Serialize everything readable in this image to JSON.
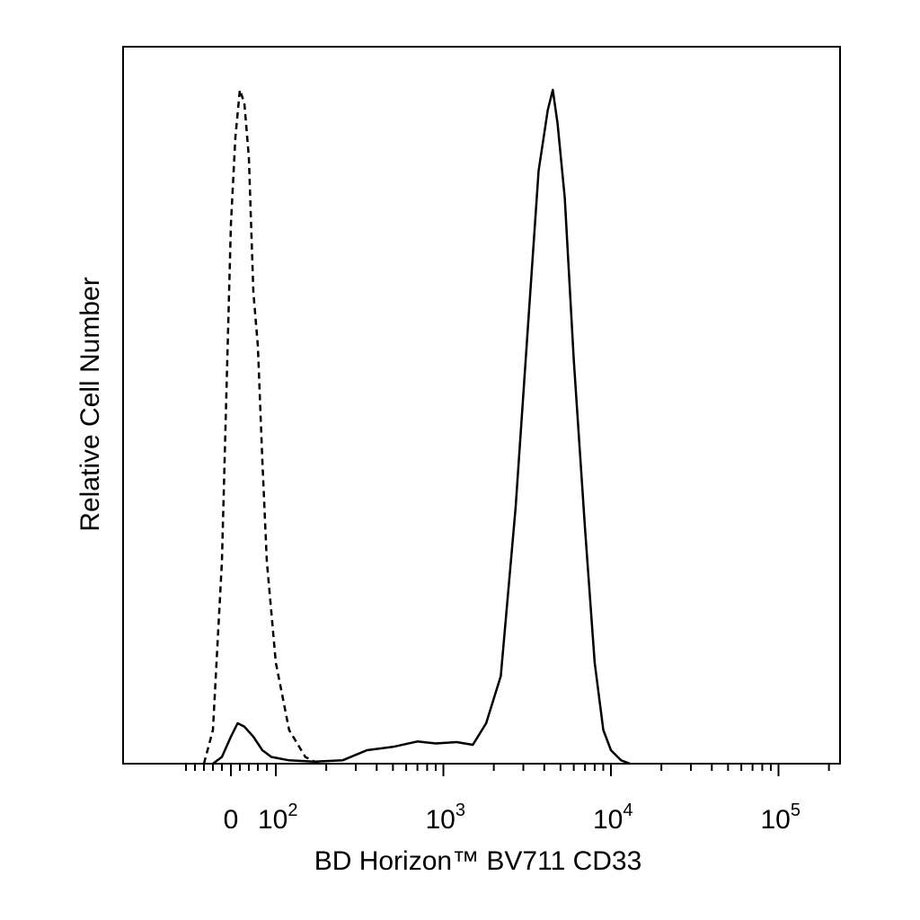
{
  "chart_data": {
    "type": "line",
    "title": "",
    "xlabel": "BD Horizon™ BV711 CD33",
    "ylabel": "Relative Cell Number",
    "x_scale": "biexponential (log above ~10^2)",
    "x_tick_labels": [
      {
        "base": "0",
        "exp": ""
      },
      {
        "base": "10",
        "exp": "2"
      },
      {
        "base": "10",
        "exp": "3"
      },
      {
        "base": "10",
        "exp": "4"
      },
      {
        "base": "10",
        "exp": "5"
      }
    ],
    "xlim": [
      -100,
      250000
    ],
    "ylim": [
      0,
      100
    ],
    "grid": false,
    "legend": "none",
    "series": [
      {
        "style": "dashed",
        "x": [
          -60,
          -40,
          -20,
          -10,
          0,
          10,
          20,
          30,
          40,
          50,
          60,
          70,
          80,
          100,
          120,
          150,
          180
        ],
        "y": [
          0,
          5,
          30,
          55,
          80,
          93,
          100,
          98,
          90,
          70,
          62,
          45,
          30,
          15,
          5,
          1,
          0
        ]
      },
      {
        "style": "solid",
        "x": [
          -40,
          -20,
          0,
          15,
          30,
          50,
          70,
          90,
          120,
          170,
          250,
          350,
          500,
          700,
          900,
          1200,
          1500,
          1800,
          2200,
          2700,
          3200,
          3700,
          4200,
          4500,
          4800,
          5300,
          6000,
          7000,
          8000,
          9000,
          10000,
          11500,
          13000
        ],
        "y": [
          0,
          1,
          4,
          6,
          5.5,
          4,
          2,
          1,
          0.5,
          0.3,
          0.5,
          2,
          2.5,
          3.3,
          3,
          3.2,
          2.8,
          6,
          13,
          38,
          65,
          88,
          97,
          100,
          95,
          84,
          60,
          35,
          15,
          5,
          2,
          0.5,
          0
        ]
      }
    ]
  }
}
